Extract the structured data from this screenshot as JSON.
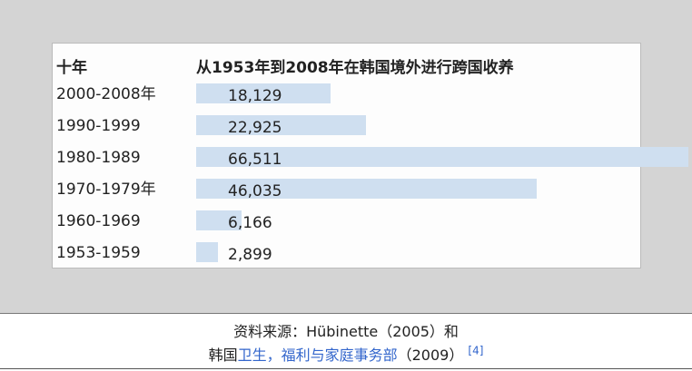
{
  "chart_data": {
    "type": "bar",
    "orientation": "horizontal",
    "column_headers": [
      "十年",
      "从1953年到2008年在韩国境外进行跨国收养"
    ],
    "categories": [
      "2000-2008年",
      "1990-1999",
      "1980-1989",
      "1970-1979年",
      "1960-1969",
      "1953-1959"
    ],
    "values": [
      18129,
      22925,
      66511,
      46035,
      6166,
      2899
    ],
    "value_labels": [
      "18,129",
      "22,925",
      "66,511",
      "46,035",
      "6,166",
      "2,899"
    ],
    "bar_color": "#cfdff0"
  },
  "caption": {
    "line1": "资料来源：Hübinette（2005）和",
    "line2_prefix": "韩国",
    "line2_link": "卫生，福利与家庭事务部",
    "line2_suffix": "（2009）",
    "ref": "[4]",
    "link_color": "#3366cc"
  }
}
